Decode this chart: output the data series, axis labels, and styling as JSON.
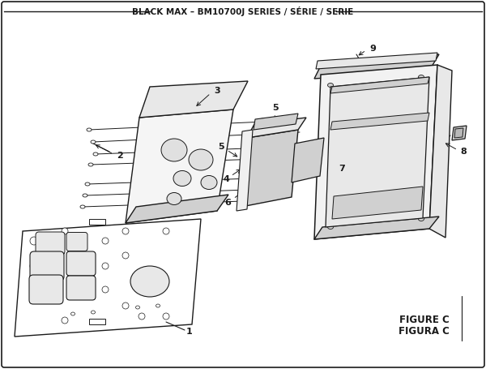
{
  "title": "BLACK MAX – BM10700J SERIES / SÉRIE / SERIE",
  "figure_label": "FIGURE C",
  "figura_label": "FIGURA C",
  "bg_color": "#ffffff",
  "line_color": "#1a1a1a",
  "gray_light": "#e8e8e8",
  "gray_mid": "#d0d0d0",
  "gray_dark": "#b8b8b8",
  "white": "#ffffff"
}
